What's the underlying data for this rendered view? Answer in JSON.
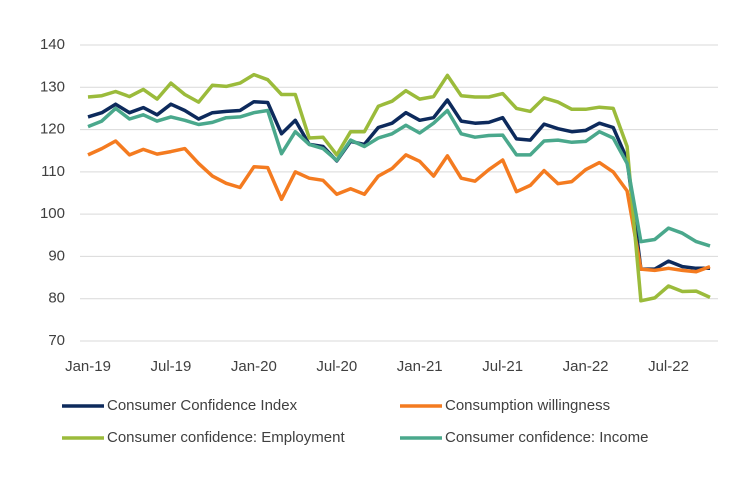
{
  "chart_data": {
    "type": "line",
    "categories": [
      "Jan-19",
      null,
      null,
      null,
      null,
      null,
      "Jul-19",
      null,
      null,
      null,
      null,
      null,
      "Jan-20",
      null,
      null,
      null,
      null,
      null,
      "Jul-20",
      null,
      null,
      null,
      null,
      null,
      "Jan-21",
      null,
      null,
      null,
      null,
      null,
      "Jul-21",
      null,
      null,
      null,
      null,
      null,
      "Jan-22",
      null,
      null,
      null,
      null,
      null,
      "Jul-22",
      null,
      null,
      null
    ],
    "series": [
      {
        "name": "Consumer Confidence Index",
        "color": "#0d2a5c",
        "values": [
          123,
          124,
          126,
          124,
          125.2,
          123.5,
          126,
          124.5,
          122.5,
          124,
          124.3,
          124.5,
          126.6,
          126.4,
          119,
          122.2,
          116.5,
          116,
          112.6,
          117.2,
          116.5,
          120.5,
          121.5,
          124,
          122.2,
          122.8,
          127,
          122,
          121.5,
          121.7,
          122.8,
          117.8,
          117.5,
          121.3,
          120.2,
          119.5,
          119.8,
          121.5,
          120.5,
          113,
          87,
          87,
          88.9,
          87.6,
          87.2,
          87.2
        ]
      },
      {
        "name": "Consumption willingness",
        "color": "#f47b20",
        "values": [
          114,
          115.5,
          117.3,
          114,
          115.3,
          114.2,
          114.8,
          115.5,
          112,
          109,
          107.3,
          106.3,
          111.2,
          111,
          103.5,
          110,
          108.5,
          108,
          104.7,
          106,
          104.7,
          109,
          110.8,
          114,
          112.5,
          109,
          113.8,
          108.5,
          107.8,
          110.5,
          112.8,
          105.3,
          106.8,
          110.3,
          107.2,
          107.7,
          110.5,
          112.2,
          110,
          105.5,
          87,
          86.7,
          87.2,
          86.7,
          86.4,
          87.6
        ]
      },
      {
        "name": "Consumer confidence: Employment",
        "color": "#9bbb3b",
        "values": [
          127.7,
          128,
          129,
          127.8,
          129.5,
          127.2,
          131,
          128.3,
          126.5,
          130.5,
          130.2,
          131,
          133,
          131.8,
          128.3,
          128.3,
          118,
          118.2,
          114,
          119.5,
          119.5,
          125.5,
          126.7,
          129.2,
          127.2,
          127.8,
          132.8,
          128,
          127.7,
          127.7,
          128.5,
          125,
          124.3,
          127.5,
          126.5,
          124.8,
          124.8,
          125.3,
          125,
          116,
          79.5,
          80.2,
          83,
          81.7,
          81.8,
          80.3
        ]
      },
      {
        "name": "Consumer confidence: Income",
        "color": "#4aa88c",
        "values": [
          120.7,
          122,
          125,
          122.5,
          123.5,
          122,
          123,
          122.2,
          121.2,
          121.7,
          122.8,
          123,
          124,
          124.5,
          114.3,
          119.5,
          116.5,
          115.5,
          112.7,
          117.5,
          116,
          118,
          119,
          121,
          119.2,
          121.5,
          124.5,
          119,
          118.2,
          118.6,
          118.7,
          114,
          114,
          117.3,
          117.5,
          117,
          117.2,
          119.5,
          118,
          112,
          93.5,
          94,
          96.7,
          95.5,
          93.5,
          92.5
        ]
      }
    ],
    "ylim": [
      70,
      140
    ],
    "yticks": [
      70,
      80,
      90,
      100,
      110,
      120,
      130,
      140
    ],
    "grid": true
  }
}
